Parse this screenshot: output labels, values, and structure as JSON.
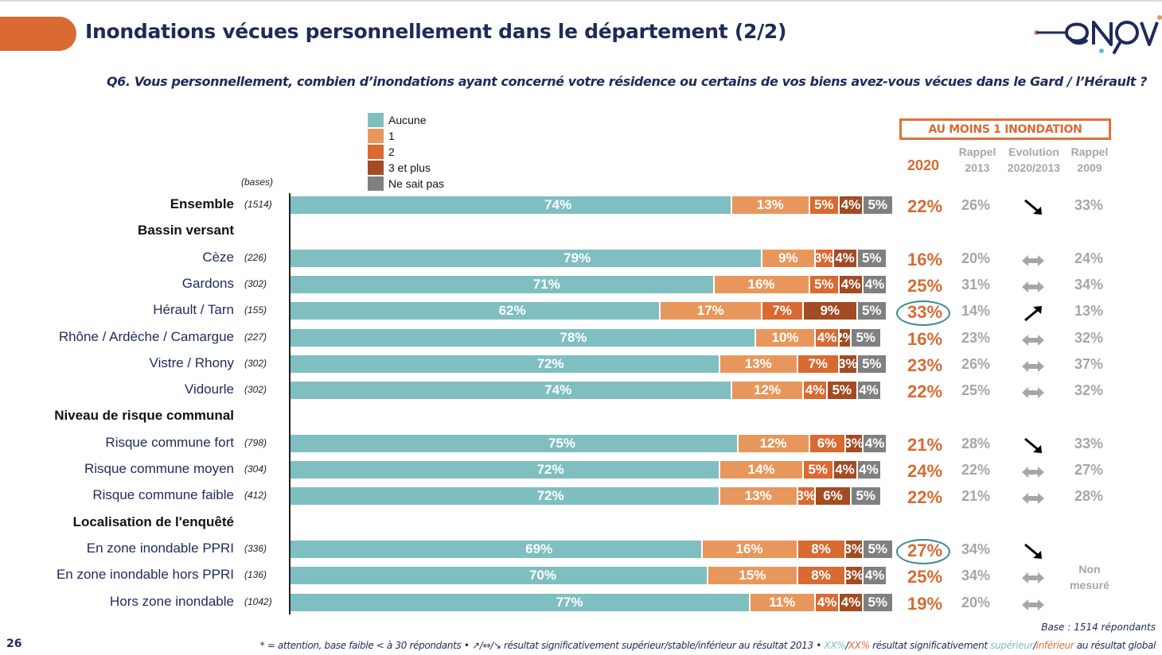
{
  "page": {
    "title": "Inondations vécues personnellement dans le département (2/2)",
    "question": "Q6. Vous personnellement, combien d’inondations ayant concerné votre résidence ou certains de vos biens avez-vous vécues dans le Gard / l’Hérault ?",
    "logo_text": "enov",
    "page_number": "26",
    "base_note": "Base : 1514 répondants",
    "footnote": {
      "part1": "* = attention, base faible < à 30 répondants • ↗/⇔/↘ résultat significativement supérieur/stable/inférieur au résultat 2013 • ",
      "teal_xx": "XX%",
      "slash": "/",
      "orange_xx": "XX%",
      "part2": " résultat significativement ",
      "teal_word": "supérieur",
      "slash2": "/",
      "orange_word": "inférieur",
      "part3": " au résultat global"
    }
  },
  "colors": {
    "aucune": "#7fbfc1",
    "one": "#e8975c",
    "two": "#d86a32",
    "three_plus": "#a34b22",
    "nsp": "#808080",
    "accent": "#d86a32",
    "ring": "#3a8a8a"
  },
  "summary_table": {
    "box_title": "AU MOINS 1 INONDATION",
    "col_2020": "2020",
    "col_2013_line1": "Rappel",
    "col_2013_line2": "2013",
    "col_evol_line1": "Evolution",
    "col_evol_line2": "2020/2013",
    "col_2009_line1": "Rappel",
    "col_2009_line2": "2009",
    "non_mesure": "Non mesuré"
  },
  "chart_data": {
    "type": "bar",
    "orientation": "horizontal-stacked-100",
    "title": "Inondations vécues personnellement dans le département (2/2)",
    "bases_label": "(bases)",
    "legend": [
      "Aucune",
      "1",
      "2",
      "3 et plus",
      "Ne sait pas"
    ],
    "legend_placement": "top",
    "xlim": [
      0,
      100
    ],
    "rows": [
      {
        "label": "Ensemble",
        "kind": "header-row",
        "base": "(1514)",
        "values": [
          74,
          13,
          5,
          4,
          5
        ],
        "labels": [
          "74%",
          "13%",
          "5%",
          "4%",
          "5%"
        ],
        "au_moins_1_2020": "22%",
        "rappel_2013": "26%",
        "evolution": "down",
        "rappel_2009": "33%",
        "ring": false
      },
      {
        "label": "Bassin versant",
        "kind": "section"
      },
      {
        "label": "Cèze",
        "kind": "row",
        "base": "(226)",
        "values": [
          79,
          9,
          3,
          4,
          5
        ],
        "labels": [
          "79%",
          "9%",
          "3%",
          "4%",
          "5%"
        ],
        "au_moins_1_2020": "16%",
        "rappel_2013": "20%",
        "evolution": "stable",
        "rappel_2009": "24%",
        "ring": false
      },
      {
        "label": "Gardons",
        "kind": "row",
        "base": "(302)",
        "values": [
          71,
          16,
          5,
          4,
          4
        ],
        "labels": [
          "71%",
          "16%",
          "5%",
          "4%",
          "4%"
        ],
        "au_moins_1_2020": "25%",
        "rappel_2013": "31%",
        "evolution": "stable",
        "rappel_2009": "34%",
        "ring": false
      },
      {
        "label": "Hérault / Tarn",
        "kind": "row",
        "base": "(155)",
        "values": [
          62,
          17,
          7,
          9,
          5
        ],
        "labels": [
          "62%",
          "17%",
          "7%",
          "9%",
          "5%"
        ],
        "au_moins_1_2020": "33%",
        "rappel_2013": "14%",
        "evolution": "up",
        "rappel_2009": "13%",
        "ring": true
      },
      {
        "label": "Rhône / Ardèche / Camargue",
        "kind": "row",
        "base": "(227)",
        "values": [
          78,
          10,
          4,
          2,
          5
        ],
        "labels": [
          "78%",
          "10%",
          "4%",
          "2%",
          "5%"
        ],
        "au_moins_1_2020": "16%",
        "rappel_2013": "23%",
        "evolution": "stable",
        "rappel_2009": "32%",
        "ring": false
      },
      {
        "label": "Vistre / Rhony",
        "kind": "row",
        "base": "(302)",
        "values": [
          72,
          13,
          7,
          3,
          5
        ],
        "labels": [
          "72%",
          "13%",
          "7%",
          "3%",
          "5%"
        ],
        "au_moins_1_2020": "23%",
        "rappel_2013": "26%",
        "evolution": "stable",
        "rappel_2009": "37%",
        "ring": false
      },
      {
        "label": "Vidourle",
        "kind": "row",
        "base": "(302)",
        "values": [
          74,
          12,
          4,
          5,
          4
        ],
        "labels": [
          "74%",
          "12%",
          "4%",
          "5%",
          "4%"
        ],
        "au_moins_1_2020": "22%",
        "rappel_2013": "25%",
        "evolution": "stable",
        "rappel_2009": "32%",
        "ring": false
      },
      {
        "label": "Niveau de risque communal",
        "kind": "section"
      },
      {
        "label": "Risque commune fort",
        "kind": "row",
        "base": "(798)",
        "values": [
          75,
          12,
          6,
          3,
          4
        ],
        "labels": [
          "75%",
          "12%",
          "6%",
          "3%",
          "4%"
        ],
        "au_moins_1_2020": "21%",
        "rappel_2013": "28%",
        "evolution": "down",
        "rappel_2009": "33%",
        "ring": false
      },
      {
        "label": "Risque commune moyen",
        "kind": "row",
        "base": "(304)",
        "values": [
          72,
          14,
          5,
          4,
          4
        ],
        "labels": [
          "72%",
          "14%",
          "5%",
          "4%",
          "4%"
        ],
        "au_moins_1_2020": "24%",
        "rappel_2013": "22%",
        "evolution": "stable",
        "rappel_2009": "27%",
        "ring": false
      },
      {
        "label": "Risque commune faible",
        "kind": "row",
        "base": "(412)",
        "values": [
          72,
          13,
          3,
          6,
          5
        ],
        "labels": [
          "72%",
          "13%",
          "3%",
          "6%",
          "5%"
        ],
        "au_moins_1_2020": "22%",
        "rappel_2013": "21%",
        "evolution": "stable",
        "rappel_2009": "28%",
        "ring": false
      },
      {
        "label": "Localisation de l'enquêté",
        "kind": "section"
      },
      {
        "label": "En zone inondable PPRI",
        "kind": "row",
        "base": "(336)",
        "values": [
          69,
          16,
          8,
          3,
          5
        ],
        "labels": [
          "69%",
          "16%",
          "8%",
          "3%",
          "5%"
        ],
        "au_moins_1_2020": "27%",
        "rappel_2013": "34%",
        "evolution": "down",
        "rappel_2009": null,
        "ring": true
      },
      {
        "label": "En zone inondable hors PPRI",
        "kind": "row",
        "base": "(136)",
        "values": [
          70,
          15,
          8,
          3,
          4
        ],
        "labels": [
          "70%",
          "15%",
          "8%",
          "3%",
          "4%"
        ],
        "au_moins_1_2020": "25%",
        "rappel_2013": "34%",
        "evolution": "stable",
        "rappel_2009": null,
        "ring": false
      },
      {
        "label": "Hors zone inondable",
        "kind": "row",
        "base": "(1042)",
        "values": [
          77,
          11,
          4,
          4,
          5
        ],
        "labels": [
          "77%",
          "11%",
          "4%",
          "4%",
          "5%"
        ],
        "au_moins_1_2020": "19%",
        "rappel_2013": "20%",
        "evolution": "stable",
        "rappel_2009": null,
        "ring": false
      }
    ]
  }
}
